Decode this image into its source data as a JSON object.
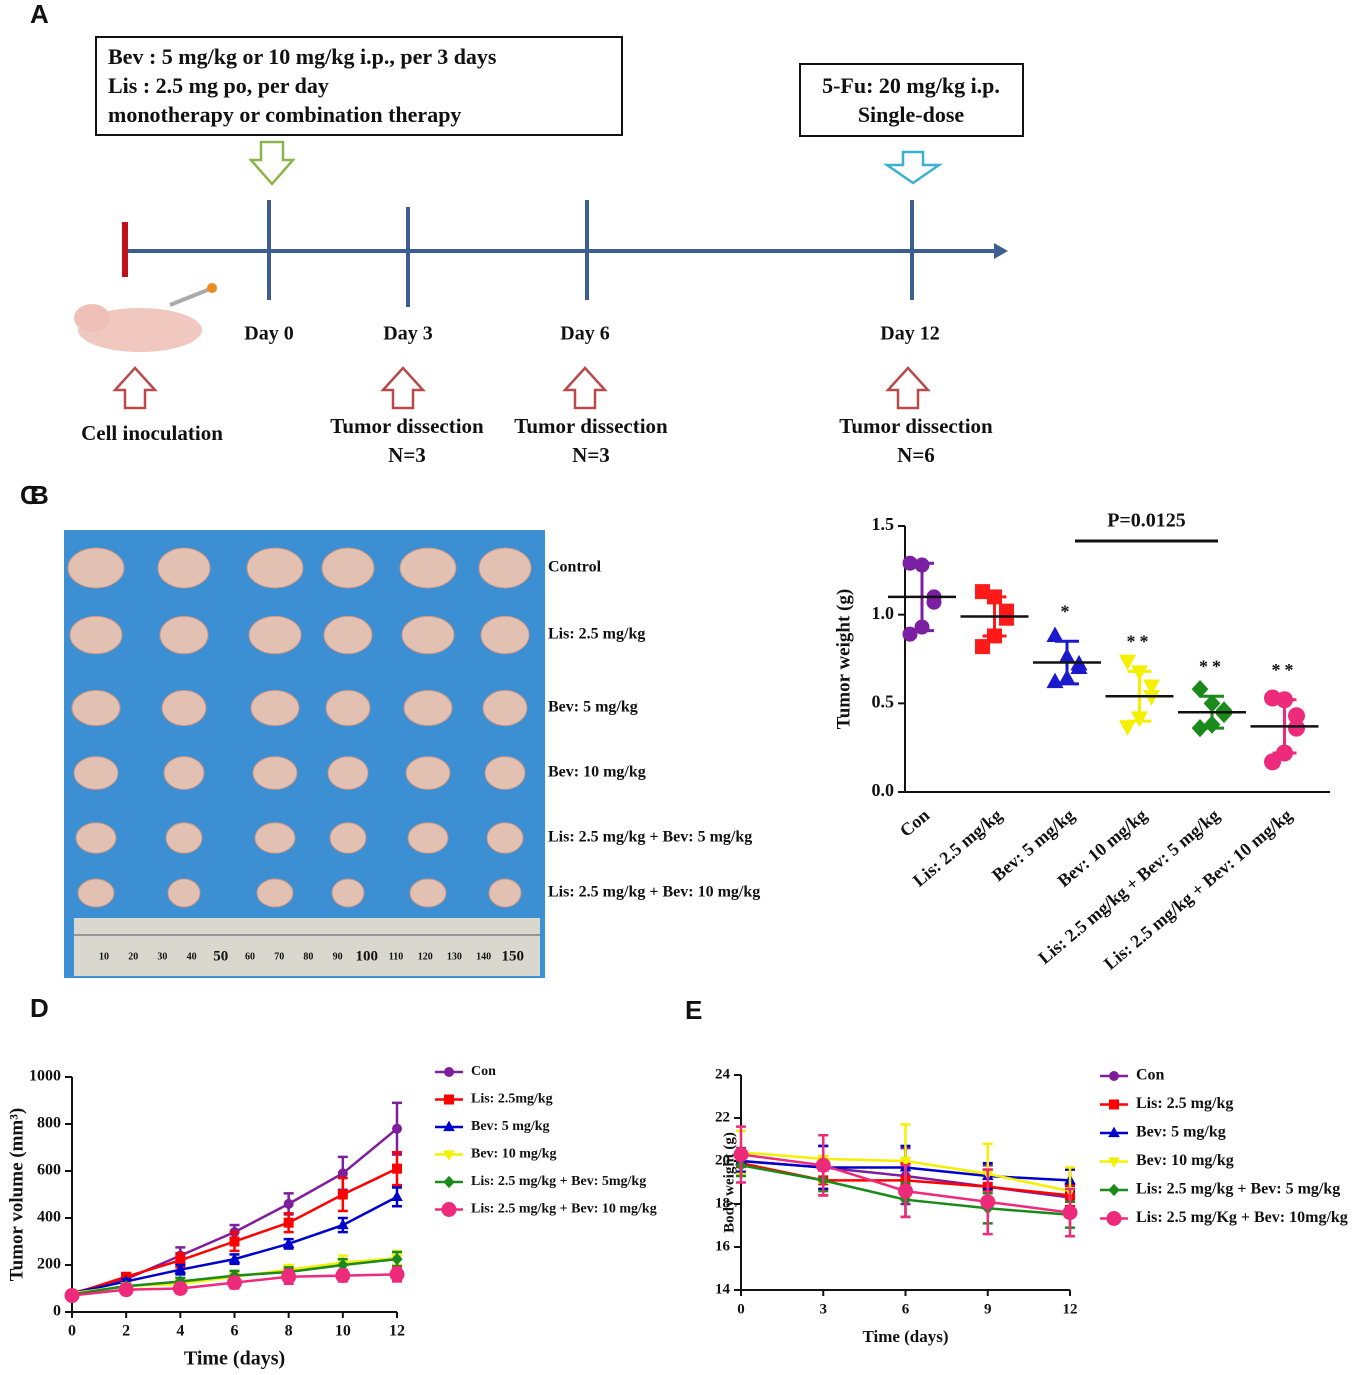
{
  "panel_a": {
    "label": "A",
    "treatment_box": [
      "Bev : 5 mg/kg or 10 mg/kg i.p., per 3 days",
      "Lis : 2.5 mg po, per day",
      "monotherapy or combination therapy"
    ],
    "fu_box": [
      "5-Fu: 20 mg/kg i.p.",
      "Single-dose"
    ],
    "days": [
      "Day 0",
      "Day 3",
      "Day 6",
      "Day 12"
    ],
    "inoculation": "Cell inoculation",
    "dissections": [
      [
        "Tumor dissection",
        "N=3"
      ],
      [
        "Tumor dissection",
        "N=3"
      ],
      [
        "Tumor dissection",
        "N=6"
      ]
    ]
  },
  "panel_b": {
    "label": "B",
    "rows": [
      "Control",
      "Lis: 2.5 mg/kg",
      "Bev: 5 mg/kg",
      "Bev: 10 mg/kg",
      "Lis: 2.5 mg/kg + Bev: 5 mg/kg",
      "Lis: 2.5 mg/kg + Bev: 10 mg/kg"
    ],
    "ruler": [
      10,
      20,
      30,
      40,
      50,
      60,
      70,
      80,
      90,
      100,
      110,
      120,
      130,
      140,
      150
    ]
  },
  "chart_data": [
    {
      "type": "dot",
      "panel": "C",
      "y_label": "Tumor weight (g)",
      "categories": [
        "Con",
        "Lis: 2.5 mg/kg",
        "Bev: 5 mg/kg",
        "Bev: 10 mg/kg",
        "Lis: 2.5 mg/kg + Bev: 5 mg/kg",
        "Lis: 2.5 mg/kg + Bev: 10 mg/kg"
      ],
      "groups": [
        {
          "color": "#7b1fa2",
          "marker": "circle",
          "values": [
            1.29,
            1.28,
            1.1,
            1.07,
            0.93,
            0.89
          ],
          "mean": 1.1,
          "sd": 0.19
        },
        {
          "color": "#ff1a1a",
          "marker": "square",
          "values": [
            1.13,
            1.1,
            1.02,
            0.98,
            0.88,
            0.82
          ],
          "mean": 0.99,
          "sd": 0.11
        },
        {
          "color": "#1a1acc",
          "marker": "triangle",
          "values": [
            0.88,
            0.76,
            0.72,
            0.7,
            0.64,
            0.62
          ],
          "mean": 0.73,
          "sd": 0.12
        },
        {
          "color": "#f5f000",
          "marker": "triangle-down",
          "values": [
            0.74,
            0.68,
            0.6,
            0.54,
            0.42,
            0.37
          ],
          "mean": 0.54,
          "sd": 0.14
        },
        {
          "color": "#1a8a1a",
          "marker": "diamond",
          "values": [
            0.58,
            0.5,
            0.46,
            0.44,
            0.38,
            0.36
          ],
          "mean": 0.45,
          "sd": 0.09
        },
        {
          "color": "#ee2a7b",
          "marker": "circle",
          "values": [
            0.53,
            0.52,
            0.43,
            0.36,
            0.22,
            0.17
          ],
          "mean": 0.37,
          "sd": 0.15
        }
      ],
      "significance": [
        null,
        null,
        "*",
        "**",
        "**",
        "**"
      ],
      "comparison": {
        "label": "P=0.0125",
        "between": [
          2,
          4
        ]
      },
      "ylim": [
        0,
        1.5
      ],
      "yticks": [
        {
          "value": 0,
          "label": "0.0"
        },
        {
          "value": 0.5,
          "label": "0.5"
        },
        {
          "value": 1,
          "label": "1.0"
        },
        {
          "value": 1.5,
          "label": "1.5"
        }
      ]
    },
    {
      "type": "line",
      "panel": "D",
      "x_label": "Time (days)",
      "y_label": "Tumor volume (mm³)",
      "x": [
        0,
        2,
        4,
        6,
        8,
        10,
        12
      ],
      "xlim": [
        0,
        12
      ],
      "xticks": [
        0,
        2,
        4,
        6,
        8,
        10,
        12
      ],
      "ylim": [
        0,
        1000
      ],
      "yticks": [
        0,
        200,
        400,
        600,
        800,
        1000
      ],
      "series": [
        {
          "name": "Con",
          "color": "#7e1e9c",
          "marker": "circle",
          "values": [
            80,
            140,
            240,
            340,
            460,
            590,
            780
          ],
          "errors": [
            10,
            15,
            35,
            30,
            45,
            70,
            110
          ]
        },
        {
          "name": "Lis: 2.5mg/kg",
          "color": "#ff0000",
          "marker": "square",
          "values": [
            75,
            150,
            220,
            300,
            380,
            500,
            610
          ],
          "errors": [
            10,
            15,
            30,
            40,
            40,
            70,
            70
          ]
        },
        {
          "name": "Bev: 5 mg/kg",
          "color": "#0000cc",
          "marker": "triangle",
          "values": [
            80,
            130,
            180,
            225,
            290,
            370,
            490
          ],
          "errors": [
            10,
            10,
            20,
            20,
            20,
            30,
            40
          ]
        },
        {
          "name": "Bev: 10 mg/kg",
          "color": "#f5f000",
          "marker": "triangle-down",
          "values": [
            80,
            110,
            120,
            150,
            180,
            210,
            230
          ],
          "errors": [
            10,
            10,
            15,
            15,
            20,
            30,
            30
          ]
        },
        {
          "name": "Lis: 2.5 mg/kg + Bev: 5mg/kg",
          "color": "#1a8a1a",
          "marker": "diamond",
          "values": [
            75,
            110,
            130,
            155,
            170,
            200,
            225
          ],
          "errors": [
            10,
            10,
            15,
            20,
            20,
            25,
            30
          ]
        },
        {
          "name": "Lis: 2.5 mg/kg + Bev: 10 mg/kg",
          "color": "#ee2a7b",
          "marker": "circle",
          "values": [
            70,
            95,
            100,
            125,
            150,
            155,
            160
          ],
          "errors": [
            10,
            15,
            20,
            25,
            30,
            25,
            30
          ]
        }
      ]
    },
    {
      "type": "line",
      "panel": "E",
      "x_label": "Time (days)",
      "y_label": "Body weight (g)",
      "x": [
        0,
        3,
        6,
        9,
        12
      ],
      "xlim": [
        0,
        12
      ],
      "xticks": [
        0,
        3,
        6,
        9,
        12
      ],
      "ylim": [
        14,
        24
      ],
      "yticks": [
        14,
        16,
        18,
        20,
        22,
        24
      ],
      "series": [
        {
          "name": "Con",
          "color": "#7e1e9c",
          "marker": "circle",
          "values": [
            20.0,
            19.7,
            19.3,
            18.8,
            18.3
          ],
          "errors": [
            0.6,
            1.0,
            1.3,
            1.0,
            0.5
          ]
        },
        {
          "name": "Lis: 2.5 mg/kg",
          "color": "#ff0000",
          "marker": "square",
          "values": [
            19.9,
            19.1,
            19.1,
            18.8,
            18.4
          ],
          "errors": [
            0.5,
            0.7,
            0.8,
            0.8,
            0.5
          ]
        },
        {
          "name": "Bev: 5 mg/kg",
          "color": "#0000cc",
          "marker": "triangle",
          "values": [
            20.0,
            19.7,
            19.7,
            19.3,
            19.1
          ],
          "errors": [
            0.5,
            1.0,
            1.0,
            0.6,
            0.5
          ]
        },
        {
          "name": "Bev: 10 mg/kg",
          "color": "#f5f000",
          "marker": "triangle-down",
          "values": [
            20.4,
            20.1,
            20.0,
            19.4,
            18.6
          ],
          "errors": [
            1.0,
            1.1,
            1.7,
            1.4,
            1.1
          ]
        },
        {
          "name": "Lis: 2.5 mg/kg + Bev: 5 mg/kg",
          "color": "#1a8a1a",
          "marker": "diamond",
          "values": [
            19.8,
            19.1,
            18.2,
            17.8,
            17.5
          ],
          "errors": [
            0.5,
            0.5,
            0.8,
            0.7,
            0.6
          ]
        },
        {
          "name": "Lis: 2.5 mg/Kg + Bev: 10mg/kg",
          "color": "#ee2a7b",
          "marker": "circle",
          "values": [
            20.3,
            19.8,
            18.6,
            18.1,
            17.6
          ],
          "errors": [
            1.3,
            1.4,
            1.2,
            1.5,
            1.1
          ]
        }
      ]
    }
  ]
}
